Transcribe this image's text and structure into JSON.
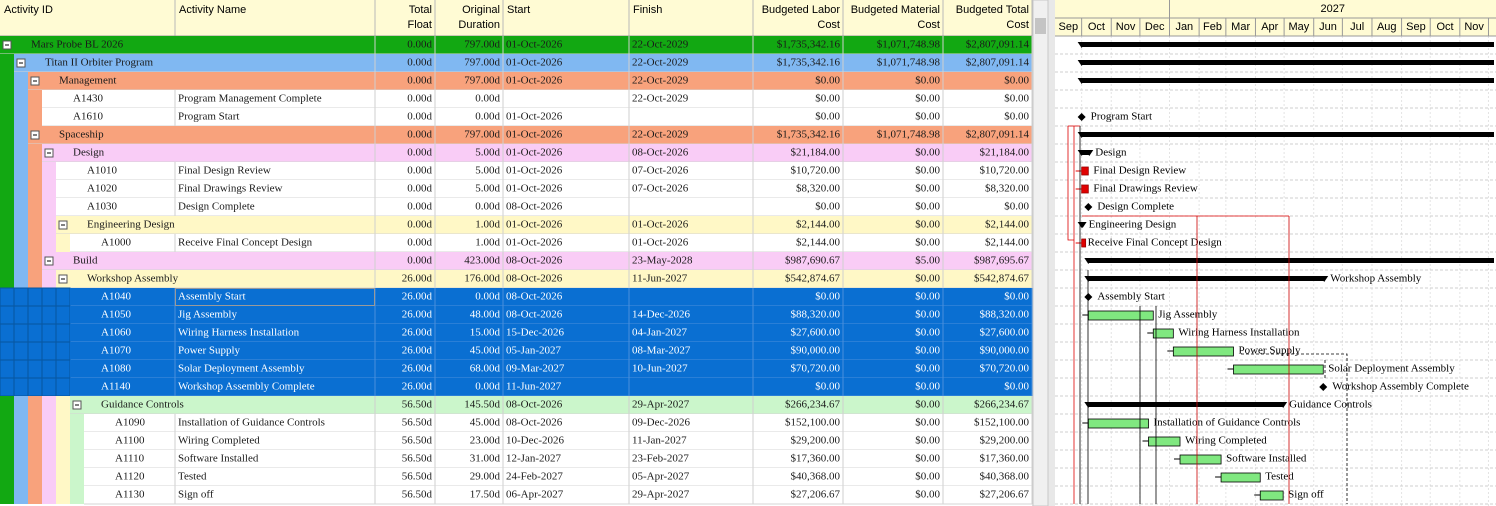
{
  "gantt": {
    "columns": [
      [
        "Activity ID"
      ],
      [
        "Activity Name"
      ],
      [
        "Total",
        "Float"
      ],
      [
        "Original",
        "Duration"
      ],
      [
        "Start"
      ],
      [
        "Finish"
      ],
      [
        "Budgeted Labor",
        "Cost"
      ],
      [
        "Budgeted Material",
        "Cost"
      ],
      [
        "Budgeted Total",
        "Cost"
      ]
    ],
    "year": "2027",
    "months": [
      "Sep",
      "Oct",
      "Nov",
      "Dec",
      "Jan",
      "Feb",
      "Mar",
      "Apr",
      "May",
      "Jun",
      "Jul",
      "Aug",
      "Sep",
      "Oct",
      "Nov"
    ],
    "rows": [
      {
        "name": "Mars Probe BL 2026",
        "float": "0.00d",
        "duration": "797.00d",
        "start": "01-Oct-2026",
        "finish": "22-Oct-2029",
        "labor": "$1,735,342.16",
        "material": "$1,071,748.98",
        "total": "$2,807,091.14"
      },
      {
        "name": "Titan II Orbiter Program",
        "float": "0.00d",
        "duration": "797.00d",
        "start": "01-Oct-2026",
        "finish": "22-Oct-2029",
        "labor": "$1,735,342.16",
        "material": "$1,071,748.98",
        "total": "$2,807,091.14"
      },
      {
        "name": "Management",
        "float": "0.00d",
        "duration": "797.00d",
        "start": "01-Oct-2026",
        "finish": "22-Oct-2029",
        "labor": "$0.00",
        "material": "$0.00",
        "total": "$0.00"
      },
      {
        "id": "A1430",
        "name": "Program Management Complete",
        "float": "0.00d",
        "duration": "0.00d",
        "finish": "22-Oct-2029",
        "labor": "$0.00",
        "material": "$0.00",
        "total": "$0.00"
      },
      {
        "id": "A1610",
        "name": "Program Start",
        "float": "0.00d",
        "duration": "0.00d",
        "start": "01-Oct-2026",
        "labor": "$0.00",
        "material": "$0.00",
        "total": "$0.00"
      },
      {
        "name": "Spaceship",
        "float": "0.00d",
        "duration": "797.00d",
        "start": "01-Oct-2026",
        "finish": "22-Oct-2029",
        "labor": "$1,735,342.16",
        "material": "$1,071,748.98",
        "total": "$2,807,091.14"
      },
      {
        "name": "Design",
        "float": "0.00d",
        "duration": "5.00d",
        "start": "01-Oct-2026",
        "finish": "08-Oct-2026",
        "labor": "$21,184.00",
        "material": "$0.00",
        "total": "$21,184.00"
      },
      {
        "id": "A1010",
        "name": "Final Design Review",
        "float": "0.00d",
        "duration": "5.00d",
        "start": "01-Oct-2026",
        "finish": "07-Oct-2026",
        "labor": "$10,720.00",
        "material": "$0.00",
        "total": "$10,720.00"
      },
      {
        "id": "A1020",
        "name": "Final Drawings Review",
        "float": "0.00d",
        "duration": "5.00d",
        "start": "01-Oct-2026",
        "finish": "07-Oct-2026",
        "labor": "$8,320.00",
        "material": "$0.00",
        "total": "$8,320.00"
      },
      {
        "id": "A1030",
        "name": "Design Complete",
        "float": "0.00d",
        "duration": "0.00d",
        "start": "08-Oct-2026",
        "labor": "$0.00",
        "material": "$0.00",
        "total": "$0.00"
      },
      {
        "name": "Engineering Design",
        "float": "0.00d",
        "duration": "1.00d",
        "start": "01-Oct-2026",
        "finish": "01-Oct-2026",
        "labor": "$2,144.00",
        "material": "$0.00",
        "total": "$2,144.00"
      },
      {
        "id": "A1000",
        "name": "Receive Final Concept Design",
        "float": "0.00d",
        "duration": "1.00d",
        "start": "01-Oct-2026",
        "finish": "01-Oct-2026",
        "labor": "$2,144.00",
        "material": "$0.00",
        "total": "$2,144.00"
      },
      {
        "name": "Build",
        "float": "0.00d",
        "duration": "423.00d",
        "start": "08-Oct-2026",
        "finish": "23-May-2028",
        "labor": "$987,690.67",
        "material": "$5.00",
        "total": "$987,695.67"
      },
      {
        "name": "Workshop Assembly",
        "float": "26.00d",
        "duration": "176.00d",
        "start": "08-Oct-2026",
        "finish": "11-Jun-2027",
        "labor": "$542,874.67",
        "material": "$0.00",
        "total": "$542,874.67"
      },
      {
        "id": "A1040",
        "name": "Assembly Start",
        "float": "26.00d",
        "duration": "0.00d",
        "start": "08-Oct-2026",
        "labor": "$0.00",
        "material": "$0.00",
        "total": "$0.00"
      },
      {
        "id": "A1050",
        "name": "Jig Assembly",
        "float": "26.00d",
        "duration": "48.00d",
        "start": "08-Oct-2026",
        "finish": "14-Dec-2026",
        "labor": "$88,320.00",
        "material": "$0.00",
        "total": "$88,320.00"
      },
      {
        "id": "A1060",
        "name": "Wiring Harness Installation",
        "float": "26.00d",
        "duration": "15.00d",
        "start": "15-Dec-2026",
        "finish": "04-Jan-2027",
        "labor": "$27,600.00",
        "material": "$0.00",
        "total": "$27,600.00"
      },
      {
        "id": "A1070",
        "name": "Power Supply",
        "float": "26.00d",
        "duration": "45.00d",
        "start": "05-Jan-2027",
        "finish": "08-Mar-2027",
        "labor": "$90,000.00",
        "material": "$0.00",
        "total": "$90,000.00"
      },
      {
        "id": "A1080",
        "name": "Solar Deployment Assembly",
        "float": "26.00d",
        "duration": "68.00d",
        "start": "09-Mar-2027",
        "finish": "10-Jun-2027",
        "labor": "$70,720.00",
        "material": "$0.00",
        "total": "$70,720.00"
      },
      {
        "id": "A1140",
        "name": "Workshop Assembly Complete",
        "float": "26.00d",
        "duration": "0.00d",
        "start": "11-Jun-2027",
        "labor": "$0.00",
        "material": "$0.00",
        "total": "$0.00"
      },
      {
        "name": "Guidance Controls",
        "float": "56.50d",
        "duration": "145.50d",
        "start": "08-Oct-2026",
        "finish": "29-Apr-2027",
        "labor": "$266,234.67",
        "material": "$0.00",
        "total": "$266,234.67"
      },
      {
        "id": "A1090",
        "name": "Installation of Guidance Controls",
        "float": "56.50d",
        "duration": "45.00d",
        "start": "08-Oct-2026",
        "finish": "09-Dec-2026",
        "labor": "$152,100.00",
        "material": "$0.00",
        "total": "$152,100.00"
      },
      {
        "id": "A1100",
        "name": "Wiring Completed",
        "float": "56.50d",
        "duration": "23.00d",
        "start": "10-Dec-2026",
        "finish": "11-Jan-2027",
        "labor": "$29,200.00",
        "material": "$0.00",
        "total": "$29,200.00"
      },
      {
        "id": "A1110",
        "name": "Software Installed",
        "float": "56.50d",
        "duration": "31.00d",
        "start": "12-Jan-2027",
        "finish": "23-Feb-2027",
        "labor": "$17,360.00",
        "material": "$0.00",
        "total": "$17,360.00"
      },
      {
        "id": "A1120",
        "name": "Tested",
        "float": "56.50d",
        "duration": "29.00d",
        "start": "24-Feb-2027",
        "finish": "05-Apr-2027",
        "labor": "$40,368.00",
        "material": "$0.00",
        "total": "$40,368.00"
      },
      {
        "id": "A1130",
        "name": "Sign off",
        "float": "56.50d",
        "duration": "17.50d",
        "start": "06-Apr-2027",
        "finish": "29-Apr-2027",
        "labor": "$27,206.67",
        "material": "$0.00",
        "total": "$27,206.67"
      }
    ]
  }
}
